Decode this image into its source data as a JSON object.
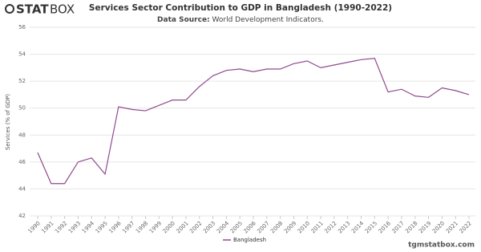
{
  "logo": {
    "bold": "STAT",
    "light": "BOX"
  },
  "footer": "tgmstatbox.com",
  "chart_data": {
    "type": "line",
    "title": "Services Sector Contribution to GDP in Bangladesh (1990-2022)",
    "source_label": "Data Source:",
    "source": "World Development Indicators.",
    "y_label": "Services (% of GDP)",
    "categories": [
      "1990",
      "1991",
      "1992",
      "1993",
      "1994",
      "1995",
      "1996",
      "1997",
      "1998",
      "1999",
      "2000",
      "2001",
      "2002",
      "2003",
      "2004",
      "2005",
      "2006",
      "2007",
      "2008",
      "2009",
      "2010",
      "2011",
      "2012",
      "2013",
      "2014",
      "2015",
      "2016",
      "2017",
      "2018",
      "2019",
      "2020",
      "2021",
      "2022"
    ],
    "series": [
      {
        "name": "Bangladesh",
        "color": "#8e4a8e",
        "values": [
          46.7,
          44.4,
          44.4,
          46.0,
          46.3,
          45.1,
          50.1,
          49.9,
          49.8,
          50.2,
          50.6,
          50.6,
          51.6,
          52.4,
          52.8,
          52.9,
          52.7,
          52.9,
          52.9,
          53.3,
          53.5,
          53.0,
          53.2,
          53.4,
          53.6,
          53.7,
          51.2,
          51.4,
          50.9,
          50.8,
          51.5,
          51.3,
          51.0
        ]
      }
    ],
    "ylim": [
      42,
      56
    ],
    "yticks": [
      42,
      44,
      46,
      48,
      50,
      52,
      54,
      56
    ],
    "grid": true,
    "legend": "bottom"
  }
}
